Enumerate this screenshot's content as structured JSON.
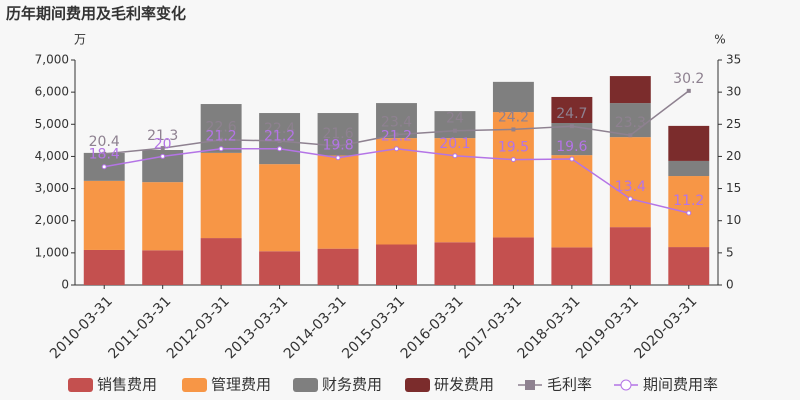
{
  "chart_data": {
    "type": "bar",
    "title": "历年期间费用及毛利率变化",
    "y_label": "万",
    "y2_label": "%",
    "categories": [
      "2010-03-31",
      "2011-03-31",
      "2012-03-31",
      "2013-03-31",
      "2014-03-31",
      "2015-03-31",
      "2016-03-31",
      "2017-03-31",
      "2018-03-31",
      "2019-03-31",
      "2020-03-31"
    ],
    "ylim": [
      0,
      7000
    ],
    "yticks": [
      0,
      {
        "value": 1000,
        "label": "1,000"
      },
      {
        "value": 2000,
        "label": "2,000"
      },
      {
        "value": 3000,
        "label": "3,000"
      },
      {
        "value": 4000,
        "label": "4,000"
      },
      {
        "value": 5000,
        "label": "5,000"
      },
      {
        "value": 6000,
        "label": "6,000"
      },
      {
        "value": 7000,
        "label": "7,000"
      }
    ],
    "y2lim": [
      0,
      35
    ],
    "y2ticks": [
      0,
      5,
      10,
      15,
      20,
      25,
      30,
      35
    ],
    "series": [
      {
        "name": "销售费用",
        "color": "#c4504f",
        "values": [
          1090,
          1080,
          1460,
          1050,
          1130,
          1260,
          1330,
          1480,
          1170,
          1800,
          1180
        ]
      },
      {
        "name": "管理费用",
        "color": "#f79646",
        "values": [
          2150,
          2120,
          2650,
          2710,
          2900,
          3310,
          3240,
          3900,
          2870,
          2800,
          2210
        ]
      },
      {
        "name": "财务费用",
        "color": "#7f7f7f",
        "values": [
          870,
          1000,
          1520,
          1590,
          1320,
          1090,
          840,
          940,
          1000,
          1060,
          470
        ]
      },
      {
        "name": "研发费用",
        "color": "#7b2c2c",
        "values": [
          0,
          0,
          0,
          0,
          0,
          0,
          0,
          0,
          810,
          840,
          1090
        ]
      },
      {
        "name": "毛利率",
        "type": "line",
        "axis": "y2",
        "color": "#8e8190",
        "values": [
          20.4,
          21.3,
          22.6,
          22.4,
          21.6,
          23.4,
          24,
          24.2,
          24.7,
          23.3,
          30.2
        ]
      },
      {
        "name": "期间费用率",
        "type": "line",
        "axis": "y2",
        "color": "#b474e6",
        "values": [
          18.4,
          20,
          21.2,
          21.2,
          19.8,
          21.2,
          20.1,
          19.5,
          19.6,
          13.4,
          11.2
        ]
      }
    ]
  }
}
